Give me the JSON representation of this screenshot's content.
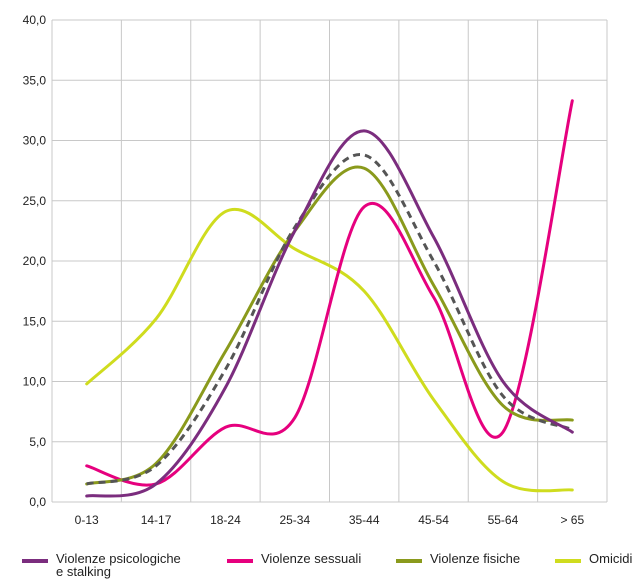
{
  "chart_data": {
    "type": "line",
    "categories": [
      "0-13",
      "14-17",
      "18-24",
      "25-34",
      "35-44",
      "45-54",
      "55-64",
      "> 65"
    ],
    "y_ticks": [
      "0,0",
      "5,0",
      "10,0",
      "15,0",
      "20,0",
      "25,0",
      "30,0",
      "35,0",
      "40,0"
    ],
    "ylim": [
      0,
      40
    ],
    "grid": true,
    "legend_position": "bottom",
    "series": [
      {
        "name": "Violenze psicologiche\ne stalking",
        "color": "#7b2d7e",
        "values": [
          0.5,
          1.5,
          9.5,
          22.5,
          30.8,
          22.0,
          10.0,
          5.8
        ]
      },
      {
        "name": "Violenze sessuali",
        "color": "#e6007e",
        "values": [
          3.0,
          1.5,
          6.2,
          7.0,
          24.5,
          17.0,
          5.8,
          33.3
        ]
      },
      {
        "name": "Violenze fisiche",
        "color": "#8a9a1c",
        "values": [
          1.5,
          3.2,
          12.5,
          22.5,
          27.7,
          18.0,
          8.0,
          6.8
        ]
      },
      {
        "name": "Omicidi",
        "color": "#cfdc1e",
        "values": [
          9.8,
          15.2,
          24.1,
          21.0,
          17.5,
          8.5,
          1.7,
          1.0
        ]
      },
      {
        "name": "",
        "color": "#555555",
        "dashed": true,
        "values": [
          1.5,
          3.0,
          11.0,
          22.8,
          28.8,
          20.0,
          8.8,
          6.0
        ]
      }
    ]
  }
}
